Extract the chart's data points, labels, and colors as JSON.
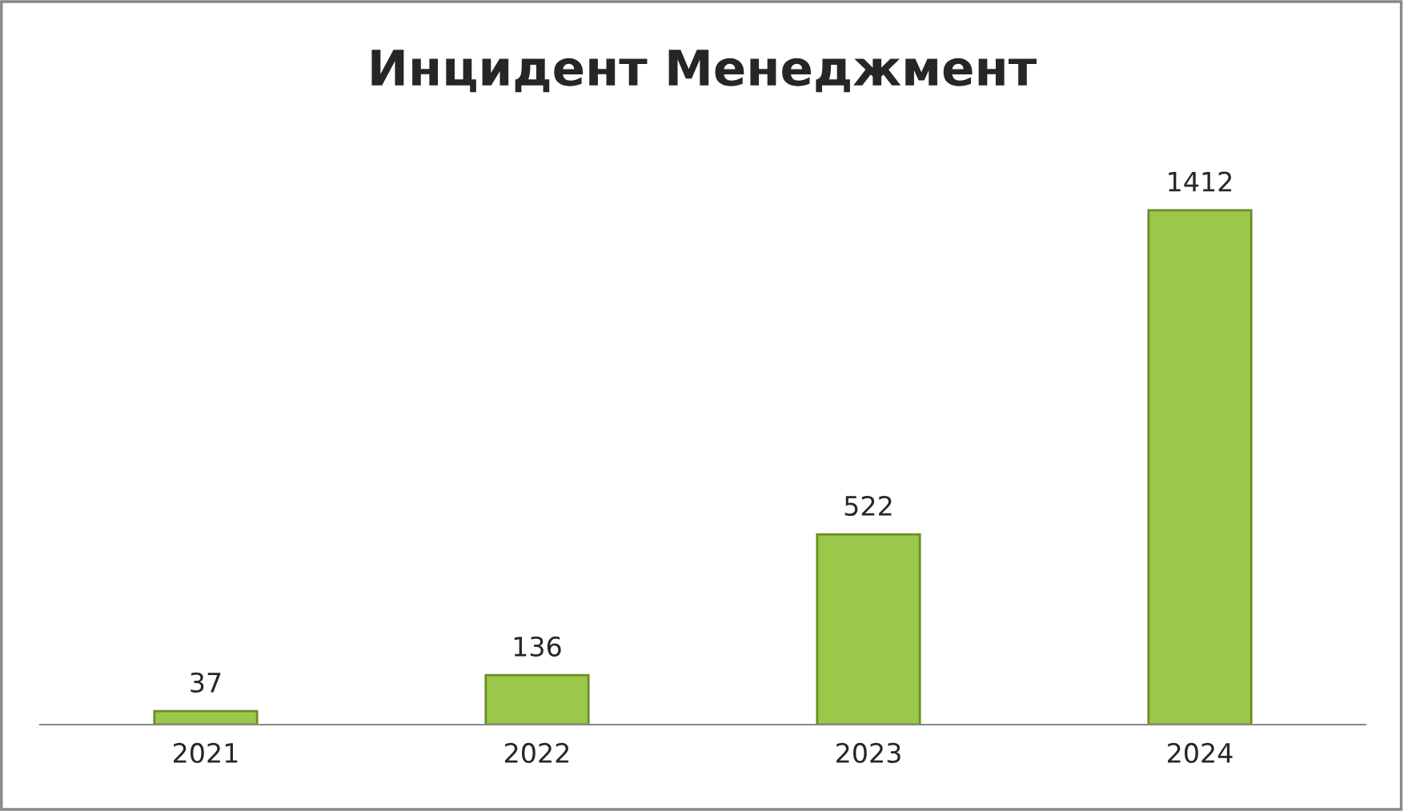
{
  "chart_data": {
    "type": "bar",
    "title": "Инцидент Менеджмент",
    "categories": [
      "2021",
      "2022",
      "2023",
      "2024"
    ],
    "values": [
      37,
      136,
      522,
      1412
    ],
    "color": "#9bc84a",
    "data_labels": true,
    "grid": false,
    "legend": false
  }
}
